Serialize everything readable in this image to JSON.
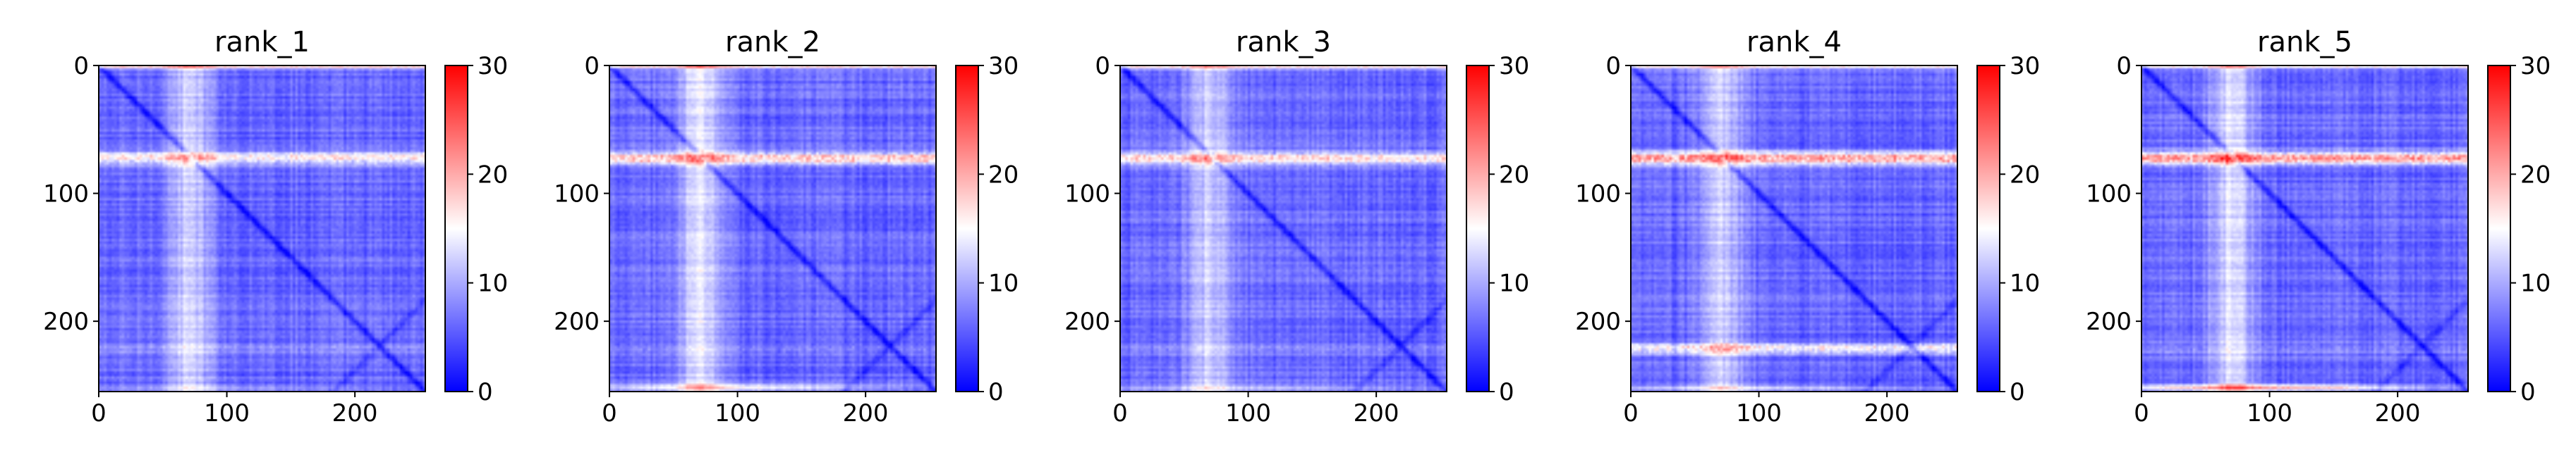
{
  "figure": {
    "colormap": "bwr",
    "colors": {
      "low": "#0000ff",
      "mid": "#ffffff",
      "high": "#ff0000",
      "axis": "#000000"
    }
  },
  "chart_data": [
    {
      "type": "heatmap",
      "title": "rank_1",
      "x_range": [
        0,
        255
      ],
      "y_range": [
        0,
        255
      ],
      "y_inverted": true,
      "x_ticks": [
        "0",
        "100",
        "200"
      ],
      "y_ticks": [
        "0",
        "100",
        "200"
      ],
      "colorbar": {
        "range": [
          0,
          30
        ],
        "ticks": [
          "0",
          "10",
          "20",
          "30"
        ]
      },
      "bands": {
        "row70": 12,
        "col70": 6,
        "row250": 4,
        "row220": 3
      }
    },
    {
      "type": "heatmap",
      "title": "rank_2",
      "x_range": [
        0,
        255
      ],
      "y_range": [
        0,
        255
      ],
      "y_inverted": true,
      "x_ticks": [
        "0",
        "100",
        "200"
      ],
      "y_ticks": [
        "0",
        "100",
        "200"
      ],
      "colorbar": {
        "range": [
          0,
          30
        ],
        "ticks": [
          "0",
          "10",
          "20",
          "30"
        ]
      },
      "bands": {
        "row70": 15,
        "col70": 7,
        "row250": 10,
        "row220": 3
      }
    },
    {
      "type": "heatmap",
      "title": "rank_3",
      "x_range": [
        0,
        255
      ],
      "y_range": [
        0,
        255
      ],
      "y_inverted": true,
      "x_ticks": [
        "0",
        "100",
        "200"
      ],
      "y_ticks": [
        "0",
        "100",
        "200"
      ],
      "colorbar": {
        "range": [
          0,
          30
        ],
        "ticks": [
          "0",
          "10",
          "20",
          "30"
        ]
      },
      "bands": {
        "row70": 13,
        "col70": 6,
        "row250": 4,
        "row220": 3
      }
    },
    {
      "type": "heatmap",
      "title": "rank_4",
      "x_range": [
        0,
        255
      ],
      "y_range": [
        0,
        255
      ],
      "y_inverted": true,
      "x_ticks": [
        "0",
        "100",
        "200"
      ],
      "y_ticks": [
        "0",
        "100",
        "200"
      ],
      "colorbar": {
        "range": [
          0,
          30
        ],
        "ticks": [
          "0",
          "10",
          "20",
          "30"
        ]
      },
      "bands": {
        "row70": 18,
        "col70": 6,
        "row250": 6,
        "row220": 12
      }
    },
    {
      "type": "heatmap",
      "title": "rank_5",
      "x_range": [
        0,
        255
      ],
      "y_range": [
        0,
        255
      ],
      "y_inverted": true,
      "x_ticks": [
        "0",
        "100",
        "200"
      ],
      "y_ticks": [
        "0",
        "100",
        "200"
      ],
      "colorbar": {
        "range": [
          0,
          30
        ],
        "ticks": [
          "0",
          "10",
          "20",
          "30"
        ]
      },
      "bands": {
        "row70": 18,
        "col70": 7,
        "row250": 14,
        "row220": 3
      }
    }
  ]
}
